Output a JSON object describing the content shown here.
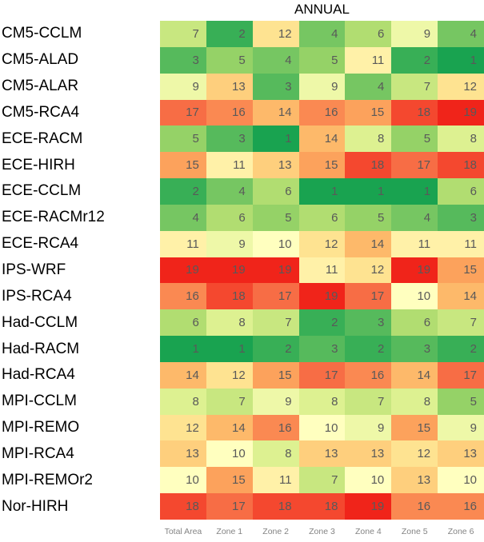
{
  "title": "ANNUAL",
  "colors": {
    "cell_text": "#595959",
    "axis_text": "#848484",
    "title_text": "#000000",
    "background": "#ffffff"
  },
  "chart_data": {
    "type": "heatmap",
    "title": "ANNUAL",
    "columns": [
      "Total Area",
      "Zone 1",
      "Zone 2",
      "Zone 3",
      "Zone 4",
      "Zone 5",
      "Zone 6"
    ],
    "rows": [
      "CM5-CCLM",
      "CM5-ALAD",
      "CM5-ALAR",
      "CM5-RCA4",
      "ECE-RACM",
      "ECE-HIRH",
      "ECE-CCLM",
      "ECE-RACMr12",
      "ECE-RCA4",
      "IPS-WRF",
      "IPS-RCA4",
      "Had-CCLM",
      "Had-RACM",
      "Had-RCA4",
      "MPI-CCLM",
      "MPI-REMO",
      "MPI-RCA4",
      "MPI-REMOr2",
      "Nor-HIRH"
    ],
    "values": [
      [
        7,
        2,
        12,
        4,
        6,
        9,
        4
      ],
      [
        3,
        5,
        4,
        5,
        11,
        2,
        1
      ],
      [
        9,
        13,
        3,
        9,
        4,
        7,
        12
      ],
      [
        17,
        16,
        14,
        16,
        15,
        18,
        19
      ],
      [
        5,
        3,
        1,
        14,
        8,
        5,
        8
      ],
      [
        15,
        11,
        13,
        15,
        18,
        17,
        18
      ],
      [
        2,
        4,
        6,
        1,
        1,
        1,
        6
      ],
      [
        4,
        6,
        5,
        6,
        5,
        4,
        3
      ],
      [
        11,
        9,
        10,
        12,
        14,
        11,
        11
      ],
      [
        19,
        19,
        19,
        11,
        12,
        19,
        15
      ],
      [
        16,
        18,
        17,
        19,
        17,
        10,
        14
      ],
      [
        6,
        8,
        7,
        2,
        3,
        6,
        7
      ],
      [
        1,
        1,
        2,
        3,
        2,
        3,
        2
      ],
      [
        14,
        12,
        15,
        17,
        16,
        14,
        17
      ],
      [
        8,
        7,
        9,
        8,
        7,
        8,
        5
      ],
      [
        12,
        14,
        16,
        10,
        9,
        15,
        9
      ],
      [
        13,
        10,
        8,
        13,
        13,
        12,
        13
      ],
      [
        10,
        15,
        11,
        7,
        10,
        13,
        10
      ],
      [
        18,
        17,
        18,
        18,
        19,
        16,
        16
      ]
    ],
    "value_range": [
      1,
      19
    ],
    "colormap": [
      "#19a350",
      "#5ebd5e",
      "#a5d86a",
      "#d9ef8b",
      "#ffffbf",
      "#fee08b",
      "#fdae61",
      "#f8764a",
      "#f0241a"
    ],
    "legend": "none",
    "grid": "off"
  }
}
